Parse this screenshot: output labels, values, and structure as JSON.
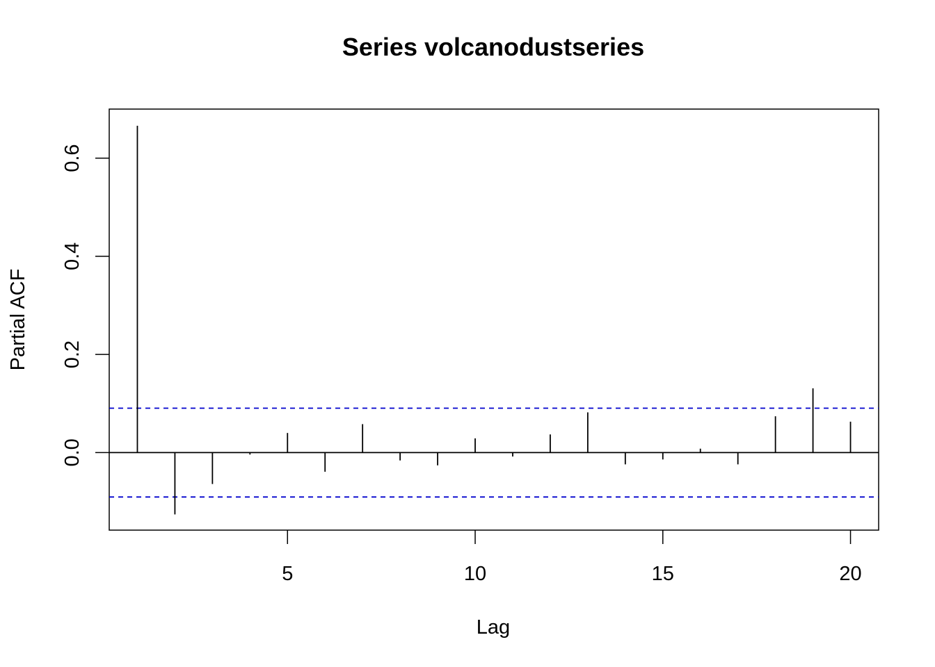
{
  "chart_data": {
    "type": "bar",
    "title": "Series  volcanodustseries",
    "xlabel": "Lag",
    "ylabel": "Partial ACF",
    "x": [
      1,
      2,
      3,
      4,
      5,
      6,
      7,
      8,
      9,
      10,
      11,
      12,
      13,
      14,
      15,
      16,
      17,
      18,
      19,
      20
    ],
    "values": [
      0.666,
      -0.126,
      -0.064,
      -0.004,
      0.04,
      -0.039,
      0.058,
      -0.016,
      -0.026,
      0.029,
      -0.008,
      0.037,
      0.082,
      -0.024,
      -0.014,
      0.008,
      -0.024,
      0.074,
      0.131,
      0.063
    ],
    "confidence_bound": 0.0905,
    "xlim": [
      0.25,
      20.75
    ],
    "ylim": [
      -0.158,
      0.7
    ],
    "xticks": [
      "5",
      "10",
      "15",
      "20"
    ],
    "yticks": [
      "0.0",
      "0.2",
      "0.4",
      "0.6"
    ],
    "grid": false,
    "colors": {
      "bars": "#000000",
      "confidence": "#0000cd",
      "zero_line": "#000000"
    }
  }
}
